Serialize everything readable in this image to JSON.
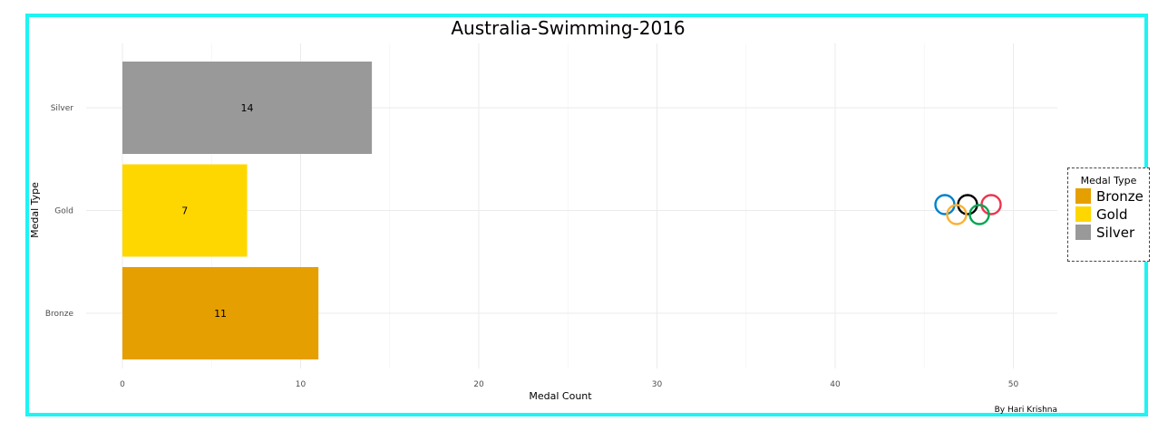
{
  "chart_data": {
    "type": "bar",
    "orientation": "horizontal",
    "title": "Australia-Swimming-2016",
    "xlabel": "Medal Count",
    "ylabel": "Medal Type",
    "categories": [
      "Bronze",
      "Gold",
      "Silver"
    ],
    "values": [
      11,
      7,
      14
    ],
    "colors": [
      "#E69F00",
      "#FFD700",
      "#999999"
    ],
    "xlim": [
      0,
      52.5
    ],
    "xticks": [
      "0",
      "10",
      "20",
      "30",
      "40",
      "50"
    ],
    "grid": true,
    "legend": {
      "title": "Medal Type",
      "placement": "right",
      "items": [
        "Bronze",
        "Gold",
        "Silver"
      ]
    },
    "caption": "By Hari Krishna",
    "frame_color": "#1EF4F4"
  }
}
